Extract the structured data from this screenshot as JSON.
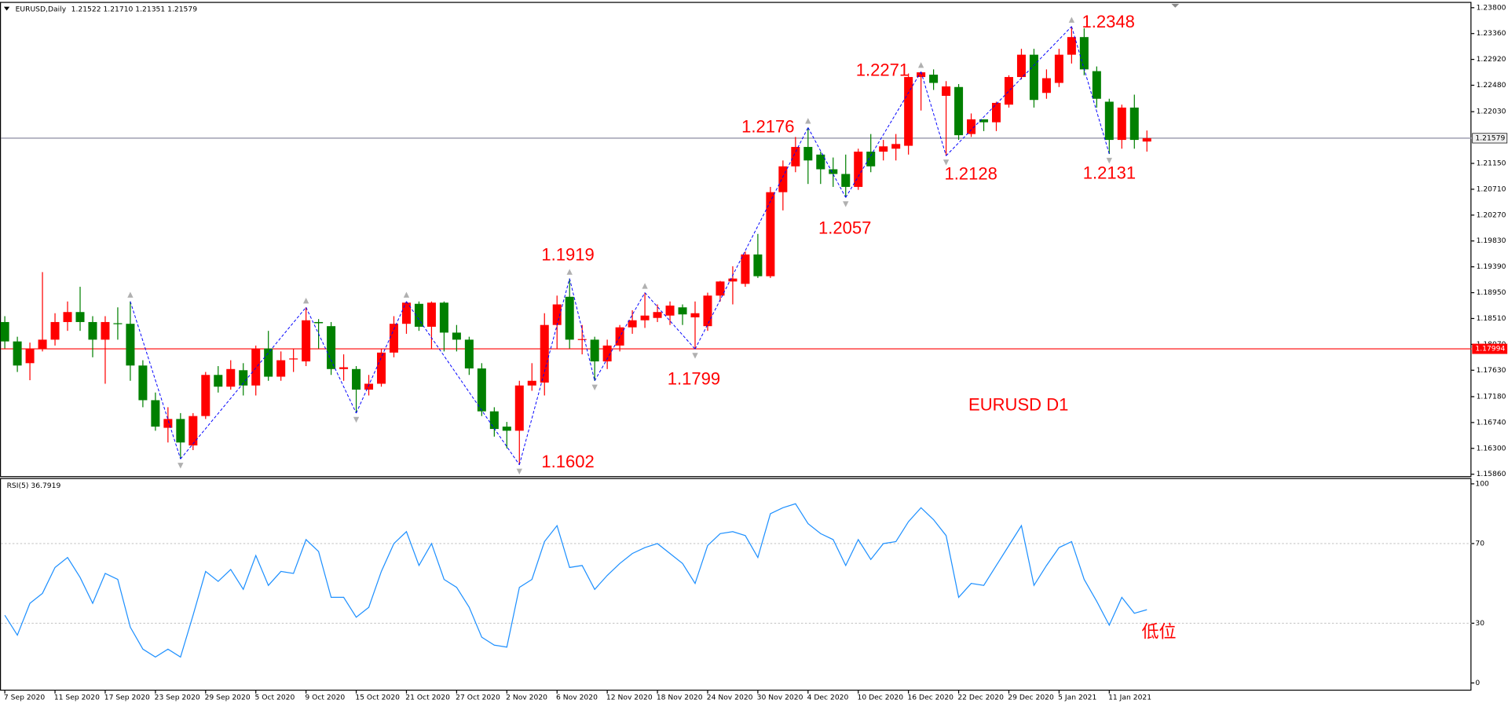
{
  "chart_data": [
    {
      "type": "candlestick",
      "title": "EURUSD,Daily",
      "subtitle": "1.21522 1.21710 1.21351 1.21579",
      "categories": [
        "7 Sep 2020",
        null,
        null,
        null,
        "11 Sep 2020",
        null,
        null,
        null,
        "17 Sep 2020",
        null,
        null,
        null,
        "23 Sep 2020",
        null,
        null,
        null,
        "29 Sep 2020",
        null,
        null,
        null,
        "5 Oct 2020",
        null,
        null,
        null,
        "9 Oct 2020",
        null,
        null,
        null,
        "15 Oct 2020",
        null,
        null,
        null,
        "21 Oct 2020",
        null,
        null,
        null,
        "27 Oct 2020",
        null,
        null,
        null,
        "2 Nov 2020",
        null,
        null,
        null,
        "6 Nov 2020",
        null,
        null,
        null,
        "12 Nov 2020",
        null,
        null,
        null,
        "18 Nov 2020",
        null,
        null,
        null,
        "24 Nov 2020",
        null,
        null,
        null,
        "30 Nov 2020",
        null,
        null,
        null,
        "4 Dec 2020",
        null,
        null,
        null,
        "10 Dec 2020",
        null,
        null,
        null,
        "16 Dec 2020",
        null,
        null,
        null,
        "22 Dec 2020",
        null,
        null,
        null,
        "29 Dec 2020",
        null,
        null,
        null,
        "5 Jan 2021",
        null,
        null,
        null,
        "11 Jan 2021",
        null,
        null,
        null
      ],
      "open": [
        1.1845,
        1.1812,
        1.1775,
        1.18,
        1.1815,
        1.1845,
        1.1862,
        1.1845,
        1.1815,
        1.1843,
        1.1842,
        1.1771,
        1.1712,
        1.1665,
        1.168,
        1.1635,
        1.1685,
        1.1755,
        1.1735,
        1.1763,
        1.1737,
        1.18,
        1.1752,
        1.1782,
        1.1778,
        1.1845,
        1.1838,
        1.1765,
        1.1765,
        1.173,
        1.174,
        1.1793,
        1.1842,
        1.1876,
        1.1837,
        1.1878,
        1.1827,
        1.1815,
        1.1766,
        1.1693,
        1.1667,
        1.166,
        1.1737,
        1.1742,
        1.184,
        1.1888,
        1.1815,
        1.1815,
        1.1778,
        1.1805,
        1.1836,
        1.1848,
        1.1852,
        1.1856,
        1.187,
        1.1853,
        1.1838,
        1.189,
        1.1914,
        1.191,
        1.196,
        1.1923,
        1.2066,
        1.211,
        1.2143,
        1.213,
        1.2105,
        1.2097,
        1.2075,
        1.2135,
        1.2135,
        1.214,
        1.2145,
        1.2262,
        1.2266,
        1.223,
        1.2245,
        1.2165,
        1.219,
        1.2185,
        1.2215,
        1.2262,
        1.23,
        1.2235,
        1.2252,
        1.23,
        1.233,
        1.2272,
        1.222,
        1.2155,
        1.221,
        1.21522
      ],
      "high": [
        1.1855,
        1.182,
        1.181,
        1.193,
        1.186,
        1.188,
        1.1905,
        1.1855,
        1.1855,
        1.187,
        1.188,
        1.178,
        1.1725,
        1.17,
        1.169,
        1.169,
        1.176,
        1.177,
        1.178,
        1.1775,
        1.1805,
        1.183,
        1.1795,
        1.18,
        1.187,
        1.185,
        1.1845,
        1.179,
        1.177,
        1.1755,
        1.18,
        1.1855,
        1.188,
        1.188,
        1.188,
        1.188,
        1.184,
        1.182,
        1.1775,
        1.17,
        1.1675,
        1.1745,
        1.1775,
        1.186,
        1.189,
        1.1919,
        1.184,
        1.182,
        1.1815,
        1.184,
        1.1865,
        1.1895,
        1.1875,
        1.188,
        1.1875,
        1.188,
        1.1895,
        1.1915,
        1.194,
        1.1965,
        1.1995,
        1.2075,
        1.212,
        1.216,
        1.2176,
        1.2135,
        1.2125,
        1.213,
        1.214,
        1.2165,
        1.2155,
        1.2165,
        1.2268,
        1.2271,
        1.2275,
        1.2255,
        1.225,
        1.22,
        1.219,
        1.222,
        1.2265,
        1.231,
        1.231,
        1.2275,
        1.231,
        1.2348,
        1.2345,
        1.228,
        1.2225,
        1.2215,
        1.2232,
        1.2171
      ],
      "low": [
        1.18,
        1.176,
        1.1746,
        1.1795,
        1.1805,
        1.183,
        1.183,
        1.1785,
        1.174,
        1.1815,
        1.1745,
        1.17,
        1.166,
        1.164,
        1.1612,
        1.1627,
        1.168,
        1.1725,
        1.173,
        1.172,
        1.172,
        1.1745,
        1.1745,
        1.176,
        1.177,
        1.18,
        1.1755,
        1.1745,
        1.169,
        1.172,
        1.1735,
        1.1785,
        1.1825,
        1.183,
        1.18,
        1.1795,
        1.1795,
        1.1755,
        1.1685,
        1.165,
        1.163,
        1.1602,
        1.1728,
        1.172,
        1.18,
        1.18,
        1.179,
        1.1745,
        1.1765,
        1.1795,
        1.1825,
        1.1835,
        1.1845,
        1.184,
        1.184,
        1.1799,
        1.183,
        1.188,
        1.1875,
        1.1905,
        1.192,
        1.192,
        1.2035,
        1.21,
        1.208,
        1.208,
        1.2075,
        1.2057,
        1.207,
        1.21,
        1.212,
        1.212,
        1.213,
        1.2205,
        1.224,
        1.2128,
        1.2155,
        1.216,
        1.217,
        1.217,
        1.221,
        1.2258,
        1.221,
        1.2225,
        1.2245,
        1.2285,
        1.2265,
        1.221,
        1.2131,
        1.214,
        1.214,
        1.21351
      ],
      "close": [
        1.1812,
        1.1771,
        1.18,
        1.1815,
        1.1845,
        1.1862,
        1.1845,
        1.1815,
        1.1845,
        1.1842,
        1.1771,
        1.1712,
        1.1667,
        1.168,
        1.164,
        1.1685,
        1.1755,
        1.1735,
        1.1765,
        1.1737,
        1.18,
        1.1752,
        1.178,
        1.1783,
        1.1848,
        1.1843,
        1.1765,
        1.1768,
        1.173,
        1.174,
        1.1793,
        1.1842,
        1.1878,
        1.1837,
        1.1878,
        1.1827,
        1.1815,
        1.1766,
        1.1693,
        1.1663,
        1.166,
        1.1737,
        1.1745,
        1.184,
        1.1875,
        1.1815,
        1.1816,
        1.1778,
        1.1805,
        1.1836,
        1.1848,
        1.1856,
        1.1862,
        1.1873,
        1.1858,
        1.186,
        1.189,
        1.1914,
        1.1919,
        1.196,
        1.1923,
        1.2066,
        1.211,
        1.2143,
        1.212,
        1.2105,
        1.2097,
        1.2075,
        1.2135,
        1.211,
        1.2144,
        1.2148,
        1.2262,
        1.227,
        1.2252,
        1.2246,
        1.2163,
        1.219,
        1.2185,
        1.2218,
        1.2262,
        1.23,
        1.2223,
        1.226,
        1.23,
        1.233,
        1.2275,
        1.2225,
        1.2155,
        1.221,
        1.2155,
        1.21579
      ],
      "up_color": "#ff0000",
      "down_color": "#008000",
      "zigzag_color": "#0000ff",
      "ylim": [
        1.1586,
        1.238
      ],
      "yticks": [
        {
          "value": 1.238,
          "label": "1.23800"
        },
        {
          "value": 1.2336,
          "label": "1.23360"
        },
        {
          "value": 1.2292,
          "label": "1.22920"
        },
        {
          "value": 1.2248,
          "label": "1.22480"
        },
        {
          "value": 1.2203,
          "label": "1.22030"
        },
        {
          "value": 1.2115,
          "label": "1.21150"
        },
        {
          "value": 1.2071,
          "label": "1.20710"
        },
        {
          "value": 1.2027,
          "label": "1.20270"
        },
        {
          "value": 1.1983,
          "label": "1.19830"
        },
        {
          "value": 1.1939,
          "label": "1.19390"
        },
        {
          "value": 1.1895,
          "label": "1.18950"
        },
        {
          "value": 1.1851,
          "label": "1.18510"
        },
        {
          "value": 1.1807,
          "label": "1.18070"
        },
        {
          "value": 1.1763,
          "label": "1.17630"
        },
        {
          "value": 1.1718,
          "label": "1.17180"
        },
        {
          "value": 1.1674,
          "label": "1.16740"
        },
        {
          "value": 1.163,
          "label": "1.16300"
        },
        {
          "value": 1.1586,
          "label": "1.15860"
        }
      ],
      "lines": [
        {
          "value": 1.21579,
          "label": "1.21579",
          "color": "#8c8ca0"
        },
        {
          "value": 1.17994,
          "label": "1.17994",
          "color": "#ff0000"
        }
      ],
      "annotations": [
        "1.2348",
        "1.2271",
        "1.2176",
        "1.2128",
        "1.2131",
        "1.2057",
        "1.1919",
        "1.1799",
        "1.1602",
        "EURUSD D1"
      ],
      "annotation_color": "#ff0000"
    },
    {
      "type": "line",
      "title": "RSI(5) 36.7919",
      "values": [
        34,
        24,
        40,
        45,
        58,
        63,
        53,
        40,
        55,
        52,
        28,
        17,
        13,
        17,
        13,
        34,
        56,
        51,
        57,
        47,
        64,
        49,
        56,
        55,
        72,
        66,
        43,
        43,
        33,
        38,
        56,
        70,
        76,
        59,
        70,
        52,
        48,
        38,
        23,
        19,
        18,
        48,
        52,
        71,
        79,
        58,
        59,
        47,
        54,
        60,
        65,
        68,
        70,
        65,
        60,
        50,
        69,
        75,
        76,
        74,
        63,
        85,
        88,
        90,
        80,
        75,
        72,
        59,
        72,
        62,
        70,
        71,
        81,
        88,
        82,
        74,
        43,
        50,
        49,
        59,
        69,
        79,
        49,
        59,
        68,
        71,
        52,
        41,
        29,
        43,
        35,
        36.7919
      ],
      "color": "#1e90ff",
      "ylim": [
        0,
        100
      ],
      "yticks": [
        0,
        30,
        70,
        100
      ],
      "annotations": [
        "低位"
      ],
      "annotation_color": "#ff0000"
    }
  ]
}
